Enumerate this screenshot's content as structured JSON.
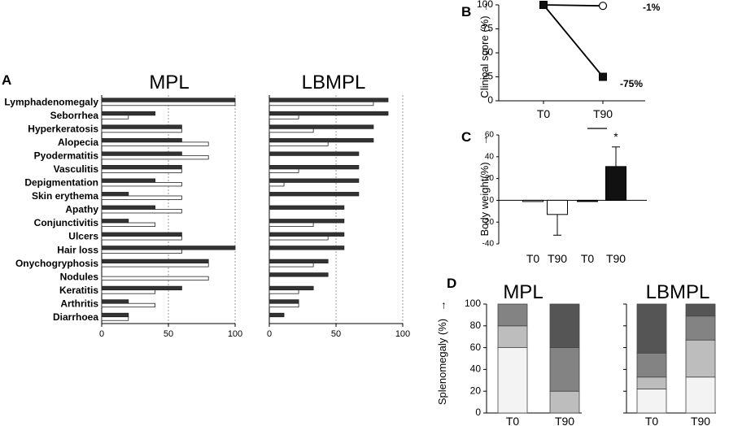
{
  "panels": {
    "A": "A",
    "B": "B",
    "C": "C",
    "D": "D"
  },
  "chart_data": [
    {
      "id": "A-MPL",
      "type": "bar",
      "title": "MPL",
      "categories": [
        "Lymphadenomegaly",
        "Seborrhea",
        "Hyperkeratosis",
        "Alopecia",
        "Pyodermatitis",
        "Vasculitis",
        "Depigmentation",
        "Skin erythema",
        "Apathy",
        "Conjunctivitis",
        "Ulcers",
        "Hair loss",
        "Onychogryphosis",
        "Nodules",
        "Keratitis",
        "Arthritis",
        "Diarrhoea"
      ],
      "series": [
        {
          "name": "T0",
          "color": "#333333",
          "values": [
            100,
            40,
            60,
            60,
            60,
            60,
            40,
            20,
            40,
            20,
            60,
            100,
            80,
            0,
            60,
            20,
            20
          ]
        },
        {
          "name": "T90",
          "color": "#ffffff",
          "values": [
            100,
            20,
            60,
            80,
            80,
            60,
            60,
            60,
            60,
            40,
            60,
            60,
            80,
            80,
            40,
            40,
            20
          ]
        }
      ],
      "xlim": [
        0,
        100
      ],
      "xticks": [
        "0",
        "50",
        "100"
      ]
    },
    {
      "id": "A-LBMPL",
      "type": "bar",
      "title": "LBMPL",
      "categories": [
        "Lymphadenomegaly",
        "Seborrhea",
        "Hyperkeratosis",
        "Alopecia",
        "Pyodermatitis",
        "Vasculitis",
        "Depigmentation",
        "Skin erythema",
        "Apathy",
        "Conjunctivitis",
        "Ulcers",
        "Hair loss",
        "Onychogryphosis",
        "Nodules",
        "Keratitis",
        "Arthritis",
        "Diarrhoea"
      ],
      "series": [
        {
          "name": "T0",
          "color": "#333333",
          "values": [
            89,
            89,
            78,
            78,
            67,
            67,
            67,
            67,
            56,
            56,
            56,
            56,
            44,
            44,
            33,
            22,
            11
          ]
        },
        {
          "name": "T90",
          "color": "#ffffff",
          "values": [
            78,
            22,
            33,
            44,
            0,
            22,
            11,
            0,
            0,
            33,
            44,
            0,
            33,
            0,
            22,
            22,
            0
          ]
        }
      ],
      "xlim": [
        0,
        100
      ],
      "xticks": [
        "0",
        "50",
        "100"
      ]
    },
    {
      "id": "B",
      "type": "line",
      "ylabel": "Clinical score (%)",
      "arrow": "→",
      "categories": [
        "T0",
        "T90"
      ],
      "ylim": [
        0,
        100
      ],
      "yticks": [
        "0",
        "25",
        "50",
        "75",
        "100"
      ],
      "series": [
        {
          "name": "MPL",
          "marker": "open-circle",
          "values": [
            100,
            99
          ],
          "annotation": "-1%"
        },
        {
          "name": "LBMPL",
          "marker": "filled-square",
          "values": [
            100,
            25
          ],
          "annotation": "-75%"
        }
      ]
    },
    {
      "id": "C",
      "type": "bar",
      "ylabel": "Body weight(%)",
      "arrow": "→",
      "categories": [
        "T0",
        "T90",
        "T0",
        "T90"
      ],
      "values": [
        0,
        -13,
        0,
        31
      ],
      "errors": [
        0,
        19,
        0,
        18
      ],
      "colors": [
        "#ffffff",
        "#ffffff",
        "#111111",
        "#111111"
      ],
      "significance": "*",
      "ylim": [
        -40,
        60
      ],
      "yticks": [
        "-40",
        "-20",
        "0",
        "20",
        "40",
        "60"
      ]
    },
    {
      "id": "D",
      "type": "bar",
      "stacked": true,
      "ylabel": "Splenomegaly (%)",
      "arrow": "→",
      "ylim": [
        0,
        100
      ],
      "yticks": [
        "0",
        "20",
        "40",
        "60",
        "80",
        "100"
      ],
      "groups": [
        {
          "title": "MPL",
          "categories": [
            "T0",
            "T90"
          ],
          "segments": [
            {
              "color": "#f3f3f3",
              "values": [
                60,
                0
              ]
            },
            {
              "color": "#bdbdbd",
              "values": [
                20,
                20
              ]
            },
            {
              "color": "#838383",
              "values": [
                20,
                40
              ]
            },
            {
              "color": "#555555",
              "values": [
                0,
                40
              ]
            }
          ]
        },
        {
          "title": "LBMPL",
          "categories": [
            "T0",
            "T90"
          ],
          "segments": [
            {
              "color": "#f3f3f3",
              "values": [
                22,
                33
              ]
            },
            {
              "color": "#bdbdbd",
              "values": [
                11,
                34
              ]
            },
            {
              "color": "#838383",
              "values": [
                22,
                22
              ]
            },
            {
              "color": "#555555",
              "values": [
                45,
                11
              ]
            }
          ]
        }
      ]
    }
  ]
}
